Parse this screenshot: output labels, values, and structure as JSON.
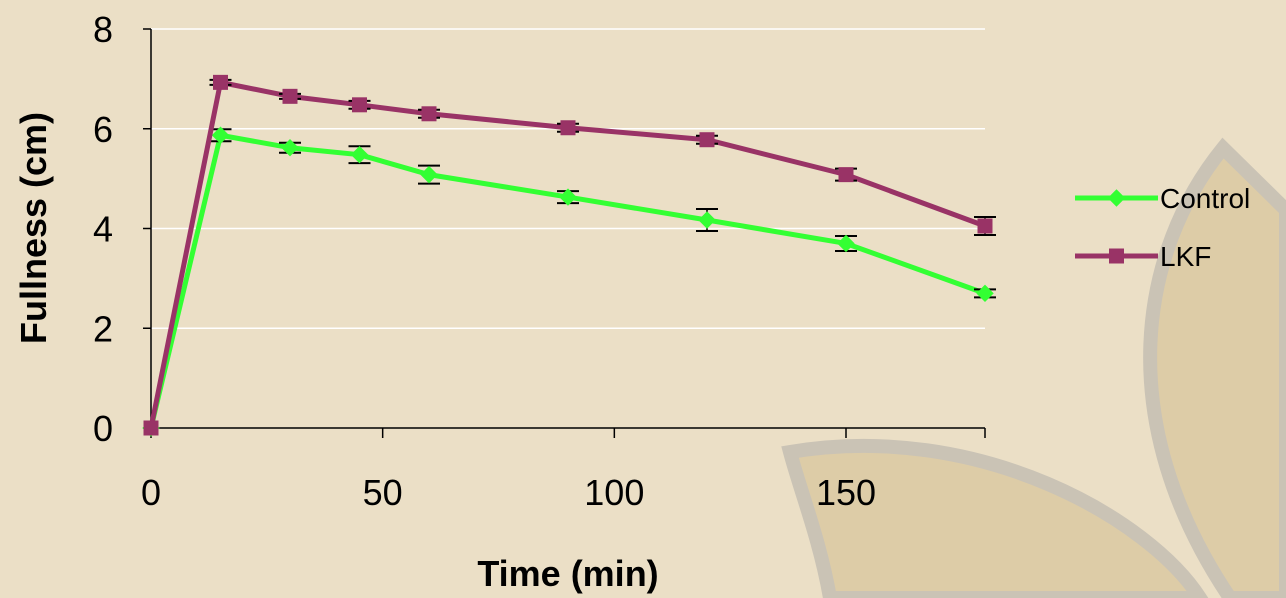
{
  "chart_data": {
    "type": "line",
    "xlabel": "Time (min)",
    "ylabel": "Fullness (cm)",
    "xlim": [
      0,
      180
    ],
    "ylim": [
      0,
      8
    ],
    "x_ticks": [
      0,
      50,
      100,
      150
    ],
    "y_ticks": [
      0,
      2,
      4,
      6,
      8
    ],
    "grid": "horizontal",
    "legend_position": "right",
    "x": [
      0,
      15,
      30,
      45,
      60,
      90,
      120,
      150,
      180
    ],
    "series": [
      {
        "name": "Control",
        "color": "#33ff33",
        "marker": "diamond",
        "values": [
          0,
          5.87,
          5.62,
          5.48,
          5.08,
          4.63,
          4.17,
          3.7,
          2.7
        ],
        "errors": [
          0,
          0.12,
          0.1,
          0.17,
          0.18,
          0.12,
          0.22,
          0.15,
          0.08
        ]
      },
      {
        "name": "LKF",
        "color": "#993366",
        "marker": "square",
        "values": [
          0,
          6.93,
          6.65,
          6.48,
          6.3,
          6.02,
          5.78,
          5.08,
          4.05
        ],
        "errors": [
          0,
          0.05,
          0.05,
          0.08,
          0.08,
          0.08,
          0.08,
          0.12,
          0.18
        ]
      }
    ]
  },
  "background": {
    "color": "#ebdfc6",
    "decoration": "leaf-shapes"
  }
}
